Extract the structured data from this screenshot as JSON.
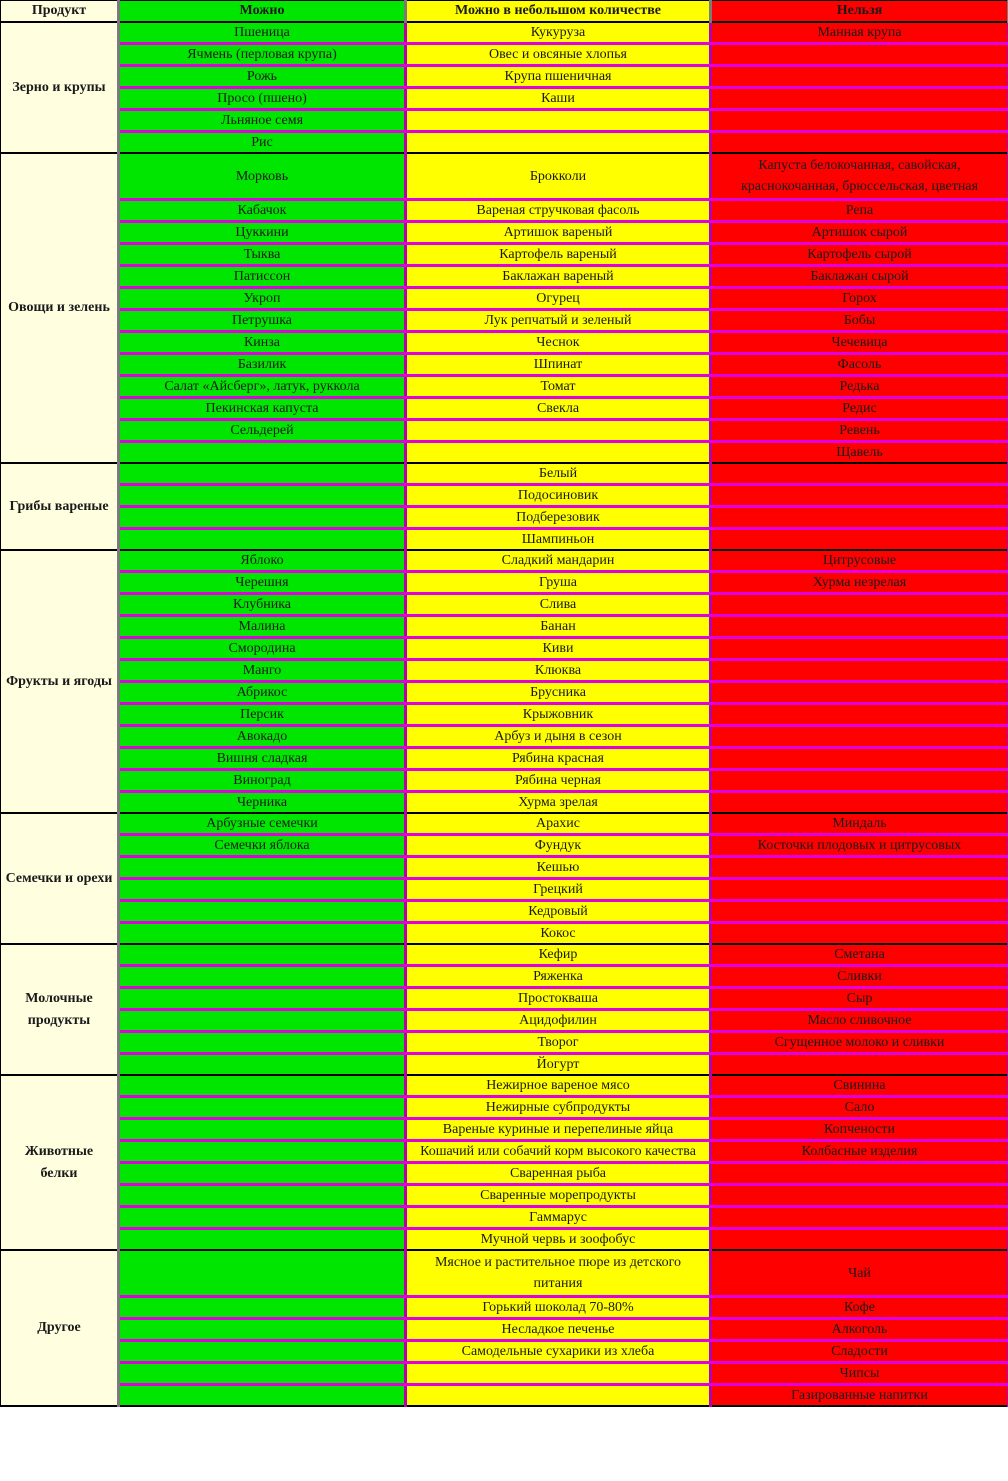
{
  "headers": [
    "Продукт",
    "Можно",
    "Можно в небольшом количестве",
    "Нельзя"
  ],
  "groups": [
    {
      "category": "Зерно и крупы",
      "rows": [
        [
          "Пшеница",
          "Кукуруза",
          "Манная крупа"
        ],
        [
          "Ячмень (перловая крупа)",
          "Овес и овсяные хлопья",
          ""
        ],
        [
          "Рожь",
          "Крупа пшеничная",
          ""
        ],
        [
          "Просо (пшено)",
          "Каши",
          ""
        ],
        [
          "Льняное семя",
          "",
          ""
        ],
        [
          "Рис",
          "",
          ""
        ]
      ]
    },
    {
      "category": "Овощи и зелень",
      "rows": [
        [
          "Морковь",
          "Брокколи",
          "Капуста белокочанная, савойская, краснокочанная, брюссельская, цветная"
        ],
        [
          "Кабачок",
          "Вареная стручковая фасоль",
          "Репа"
        ],
        [
          "Цуккини",
          "Артишок вареный",
          "Артишок сырой"
        ],
        [
          "Тыква",
          "Картофель вареный",
          "Картофель сырой"
        ],
        [
          "Патиссон",
          "Баклажан вареный",
          "Баклажан сырой"
        ],
        [
          "Укроп",
          "Огурец",
          "Горох"
        ],
        [
          "Петрушка",
          "Лук репчатый и зеленый",
          "Бобы"
        ],
        [
          "Кинза",
          "Чеснок",
          "Чечевица"
        ],
        [
          "Базилик",
          "Шпинат",
          "Фасоль"
        ],
        [
          "Салат «Айсберг», латук, руккола",
          "Томат",
          "Редька"
        ],
        [
          "Пекинская капуста",
          "Свекла",
          "Редис"
        ],
        [
          "Сельдерей",
          "",
          "Ревень"
        ],
        [
          "",
          "",
          "Щавель"
        ]
      ]
    },
    {
      "category": "Грибы вареные",
      "rows": [
        [
          "",
          "Белый",
          ""
        ],
        [
          "",
          "Подосиновик",
          ""
        ],
        [
          "",
          "Подберезовик",
          ""
        ],
        [
          "",
          "Шампиньон",
          ""
        ]
      ]
    },
    {
      "category": "Фрукты и ягоды",
      "rows": [
        [
          "Яблоко",
          "Сладкий мандарин",
          "Цитрусовые"
        ],
        [
          "Черешня",
          "Груша",
          "Хурма незрелая"
        ],
        [
          "Клубника",
          "Слива",
          ""
        ],
        [
          "Малина",
          "Банан",
          ""
        ],
        [
          "Смородина",
          "Киви",
          ""
        ],
        [
          "Манго",
          "Клюква",
          ""
        ],
        [
          "Абрикос",
          "Брусника",
          ""
        ],
        [
          "Персик",
          "Крыжовник",
          ""
        ],
        [
          "Авокадо",
          "Арбуз и дыня в сезон",
          ""
        ],
        [
          "Вишня сладкая",
          "Рябина красная",
          ""
        ],
        [
          "Виноград",
          "Рябина черная",
          ""
        ],
        [
          "Черника",
          "Хурма зрелая",
          ""
        ]
      ]
    },
    {
      "category": "Семечки и орехи",
      "rows": [
        [
          "Арбузные семечки",
          "Арахис",
          "Миндаль"
        ],
        [
          "Семечки яблока",
          "Фундук",
          "Косточки плодовых и цитрусовых"
        ],
        [
          "",
          "Кешью",
          ""
        ],
        [
          "",
          "Грецкий",
          ""
        ],
        [
          "",
          "Кедровый",
          ""
        ],
        [
          "",
          "Кокос",
          ""
        ]
      ]
    },
    {
      "category": "Молочные продукты",
      "rows": [
        [
          "",
          "Кефир",
          "Сметана"
        ],
        [
          "",
          "Ряженка",
          "Сливки"
        ],
        [
          "",
          "Простокваша",
          "Сыр"
        ],
        [
          "",
          "Ацидофилин",
          "Масло сливочное"
        ],
        [
          "",
          "Творог",
          "Сгущенное молоко и сливки"
        ],
        [
          "",
          "Йогурт",
          ""
        ]
      ]
    },
    {
      "category": "Животные белки",
      "rows": [
        [
          "",
          "Нежирное вареное мясо",
          "Свинина"
        ],
        [
          "",
          "Нежирные субпродукты",
          "Сало"
        ],
        [
          "",
          "Вареные куриные и перепелиные яйца",
          "Копчености"
        ],
        [
          "",
          "Кошачий или собачий корм высокого качества",
          "Колбасные изделия"
        ],
        [
          "",
          "Сваренная рыба",
          ""
        ],
        [
          "",
          "Сваренные морепродукты",
          ""
        ],
        [
          "",
          "Гаммарус",
          ""
        ],
        [
          "",
          "Мучной червь и зоофобус",
          ""
        ]
      ]
    },
    {
      "category": "Другое",
      "rows": [
        [
          "",
          "Мясное и растительное пюре из детского питания",
          "Чай"
        ],
        [
          "",
          "Горький шоколад 70-80%",
          "Кофе"
        ],
        [
          "",
          "Несладкое печенье",
          "Алкоголь"
        ],
        [
          "",
          "Самодельные сухарики из хлеба",
          "Сладости"
        ],
        [
          "",
          "",
          "Чипсы"
        ],
        [
          "",
          "",
          "Газированные напитки"
        ]
      ]
    }
  ]
}
